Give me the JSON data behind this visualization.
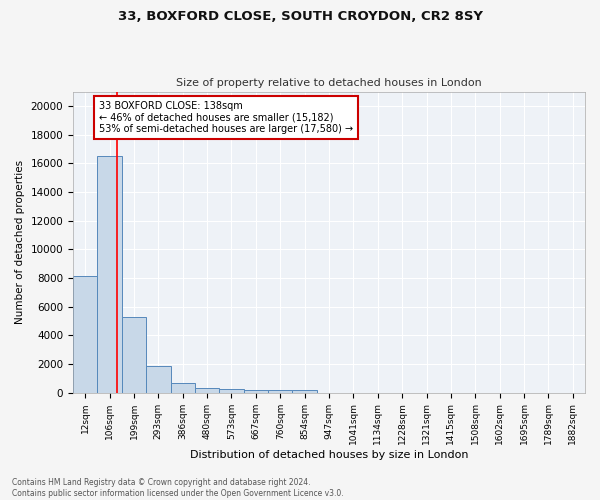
{
  "title_line1": "33, BOXFORD CLOSE, SOUTH CROYDON, CR2 8SY",
  "title_line2": "Size of property relative to detached houses in London",
  "xlabel": "Distribution of detached houses by size in London",
  "ylabel": "Number of detached properties",
  "bar_labels": [
    "12sqm",
    "106sqm",
    "199sqm",
    "293sqm",
    "386sqm",
    "480sqm",
    "573sqm",
    "667sqm",
    "760sqm",
    "854sqm",
    "947sqm",
    "1041sqm",
    "1134sqm",
    "1228sqm",
    "1321sqm",
    "1415sqm",
    "1508sqm",
    "1602sqm",
    "1695sqm",
    "1789sqm",
    "1882sqm"
  ],
  "bar_heights": [
    8100,
    16500,
    5300,
    1850,
    700,
    320,
    230,
    200,
    180,
    160,
    0,
    0,
    0,
    0,
    0,
    0,
    0,
    0,
    0,
    0,
    0
  ],
  "bar_color": "#c8d8e8",
  "bar_edge_color": "#5588bb",
  "red_line_x": 1.32,
  "annotation_text": "33 BOXFORD CLOSE: 138sqm\n← 46% of detached houses are smaller (15,182)\n53% of semi-detached houses are larger (17,580) →",
  "annotation_box_color": "#ffffff",
  "annotation_box_edge_color": "#cc0000",
  "ylim": [
    0,
    21000
  ],
  "yticks": [
    0,
    2000,
    4000,
    6000,
    8000,
    10000,
    12000,
    14000,
    16000,
    18000,
    20000
  ],
  "footer_line1": "Contains HM Land Registry data © Crown copyright and database right 2024.",
  "footer_line2": "Contains public sector information licensed under the Open Government Licence v3.0.",
  "bg_color": "#f5f5f5",
  "plot_bg_color": "#eef2f7"
}
